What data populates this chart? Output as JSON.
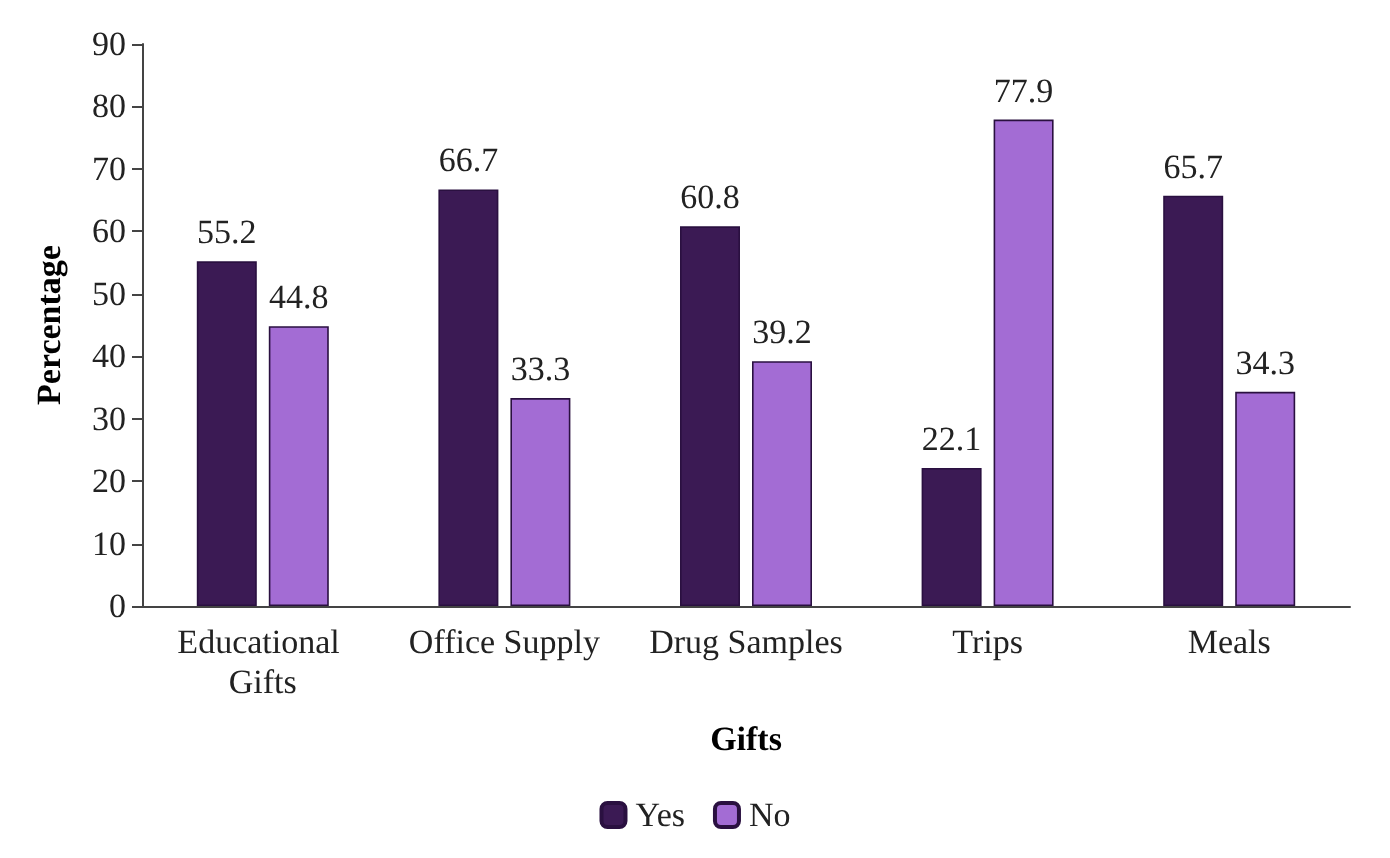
{
  "chart_data": {
    "type": "bar",
    "xlabel": "Gifts",
    "ylabel": "Percentage",
    "categories": [
      "Educational Gifts",
      "Office Supply",
      "Drug Samples",
      "Trips",
      "Meals"
    ],
    "series": [
      {
        "name": "Yes",
        "color": "#3b1a54",
        "values": [
          55.2,
          66.7,
          60.8,
          22.1,
          65.7
        ]
      },
      {
        "name": "No",
        "color": "#a36cd4",
        "values": [
          44.8,
          33.3,
          39.2,
          77.9,
          34.3
        ]
      }
    ],
    "ylim": [
      0,
      90
    ],
    "yticks": [
      0,
      10,
      20,
      30,
      40,
      50,
      60,
      70,
      80,
      90
    ],
    "grid": false,
    "legend": "bottom",
    "data_labels": true
  }
}
